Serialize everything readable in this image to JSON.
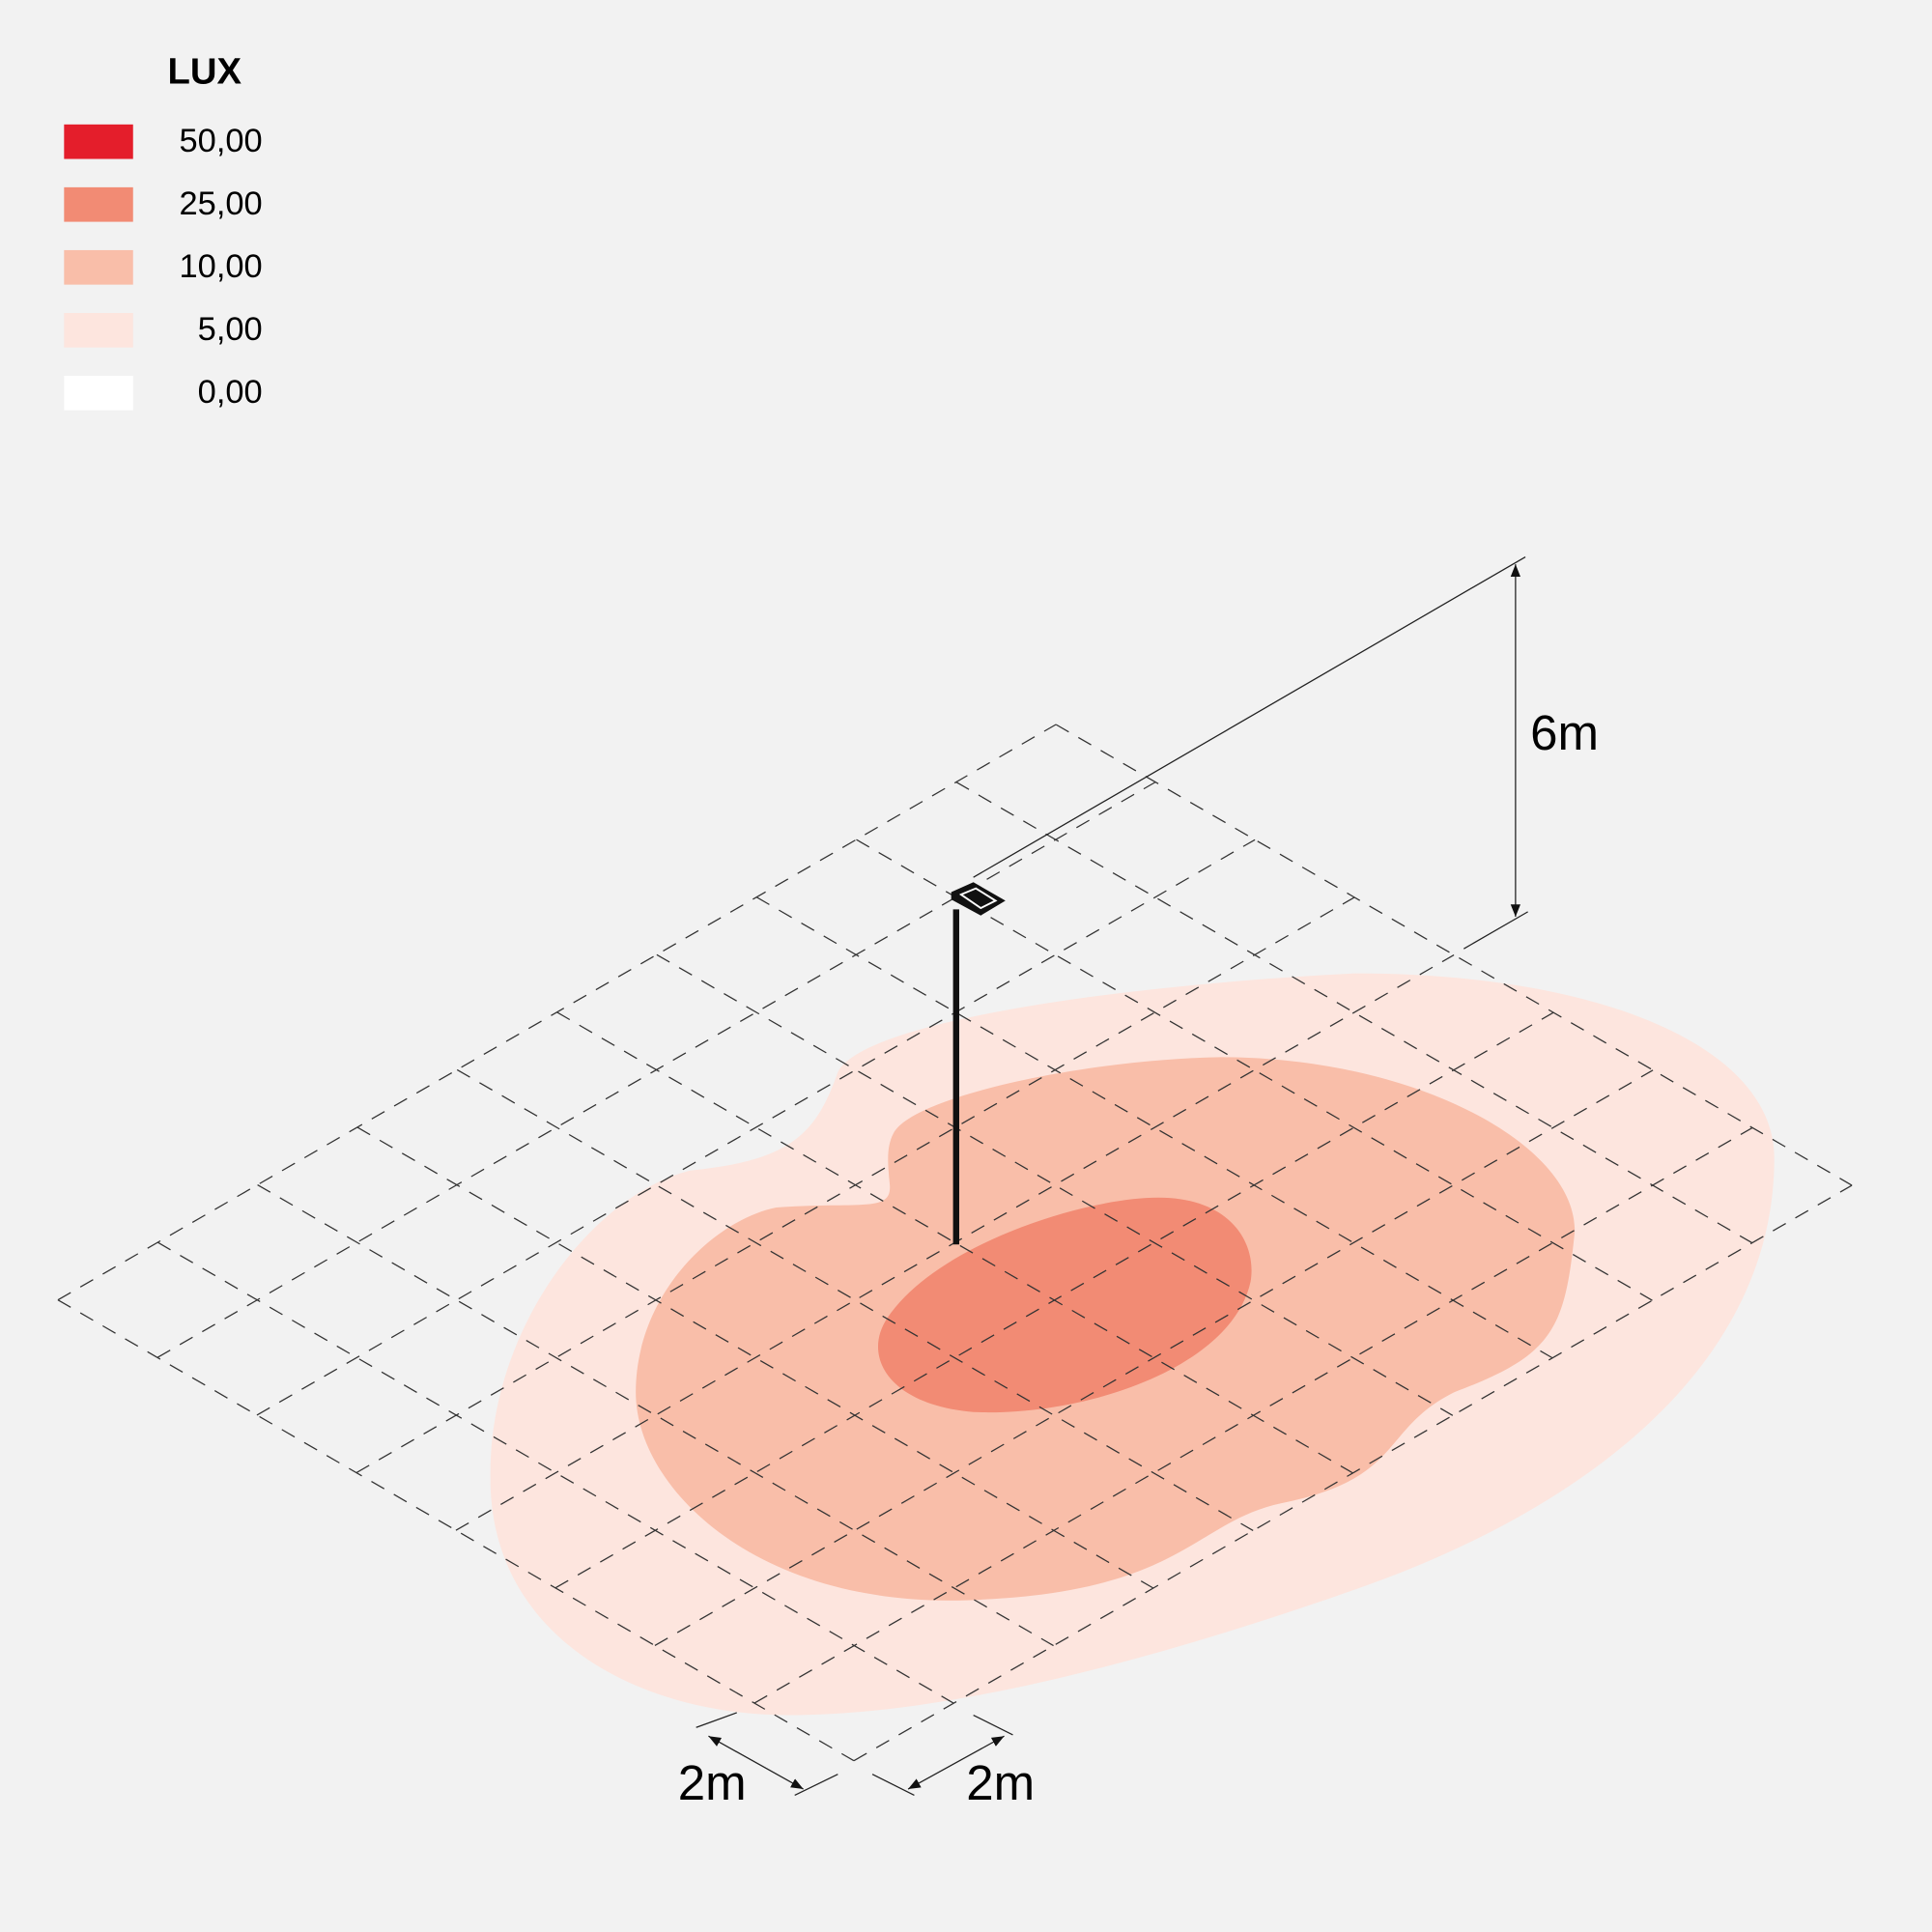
{
  "legend": {
    "title": "LUX",
    "items": [
      {
        "label": "50,00",
        "color": "#e41e2b"
      },
      {
        "label": "25,00",
        "color": "#f28b74"
      },
      {
        "label": "10,00",
        "color": "#f9bea9"
      },
      {
        "label": "5,00",
        "color": "#fde5de"
      },
      {
        "label": "0,00",
        "color": "#ffffff"
      }
    ]
  },
  "dimensions": {
    "height": "6m",
    "grid_a": "2m",
    "grid_b": "2m"
  }
}
